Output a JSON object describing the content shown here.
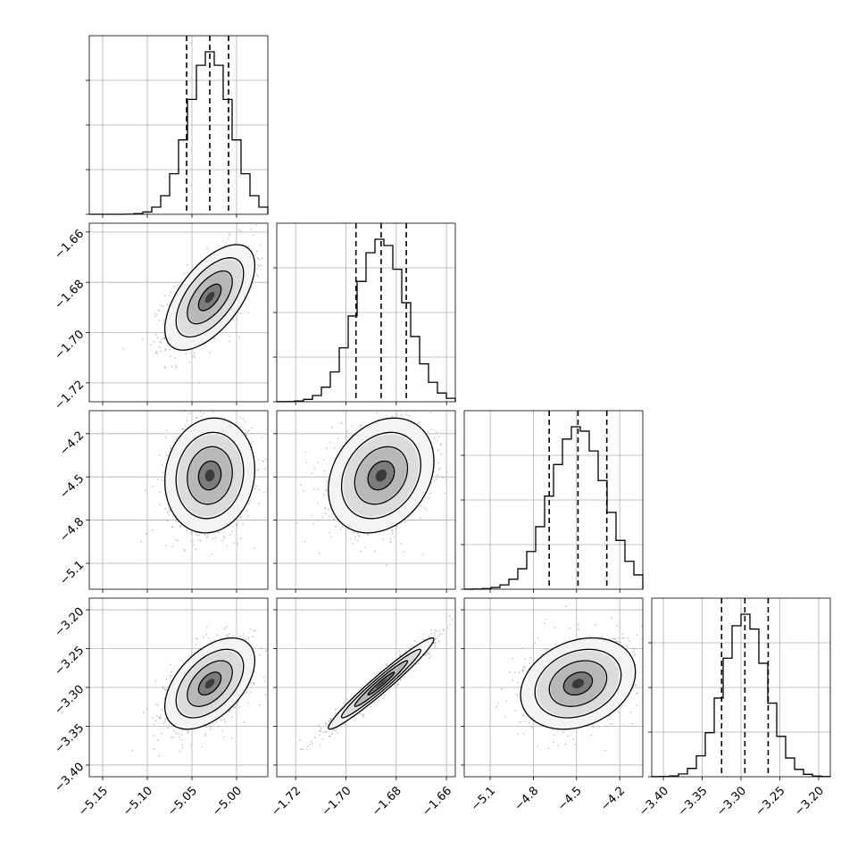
{
  "chart_data": {
    "type": "corner",
    "n_params": 4,
    "grid": true,
    "quantiles": [
      0.16,
      0.5,
      0.84
    ],
    "params": [
      {
        "median": -5.03,
        "q16": -5.056,
        "q84": -5.009,
        "sigma": 0.024,
        "range": [
          -5.165,
          -4.965
        ]
      },
      {
        "median": -1.686,
        "q16": -1.696,
        "q84": -1.676,
        "sigma": 0.01,
        "range": [
          -1.7275,
          -1.6565
        ]
      },
      {
        "median": -4.49,
        "q16": -4.69,
        "q84": -4.29,
        "sigma": 0.19,
        "range": [
          -5.28,
          -4.04
        ]
      },
      {
        "median": -3.295,
        "q16": -3.325,
        "q84": -3.265,
        "sigma": 0.028,
        "range": [
          -3.415,
          -3.185
        ]
      }
    ],
    "ticks": [
      [
        -5.15,
        -5.1,
        -5.05,
        -5.0
      ],
      [
        -1.72,
        -1.7,
        -1.68,
        -1.66
      ],
      [
        -5.1,
        -4.8,
        -4.5,
        -4.2
      ],
      [
        -3.4,
        -3.35,
        -3.3,
        -3.25,
        -3.2
      ]
    ],
    "tick_labels": [
      [
        "−5.15",
        "−5.10",
        "−5.05",
        "−5.00"
      ],
      [
        "−1.72",
        "−1.70",
        "−1.68",
        "−1.66"
      ],
      [
        "−5.1",
        "−4.8",
        "−4.5",
        "−4.2"
      ],
      [
        "−3.40",
        "−3.35",
        "−3.30",
        "−3.25",
        "−3.20"
      ]
    ],
    "correlations": [
      {
        "i": 1,
        "j": 0,
        "rho": 0.6
      },
      {
        "i": 2,
        "j": 0,
        "rho": 0.1
      },
      {
        "i": 2,
        "j": 1,
        "rho": 0.25
      },
      {
        "i": 3,
        "j": 0,
        "rho": 0.5
      },
      {
        "i": 3,
        "j": 1,
        "rho": 0.97
      },
      {
        "i": 3,
        "j": 2,
        "rho": 0.25
      }
    ],
    "hist_bins": 20,
    "contour_levels_sigma": [
      0.5,
      1.0,
      1.5,
      2.0
    ],
    "colors": {
      "line": "#000000",
      "grid": "#b0b0b0",
      "scatter": "#a0a0a0",
      "density_dark": "#262626",
      "density_light": "#f2f2f2"
    }
  }
}
